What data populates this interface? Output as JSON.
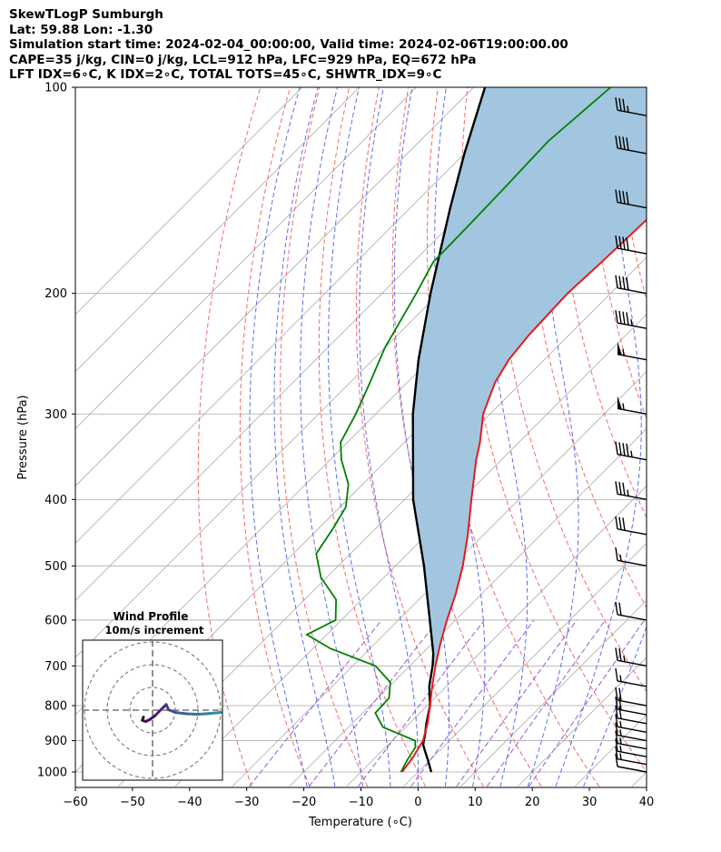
{
  "header": {
    "line1": "SkewTLogP Sumburgh",
    "line2": "Lat: 59.88   Lon: -1.30",
    "line3": "Simulation start time: 2024-02-04_00:00:00, Valid time: 2024-02-06T19:00:00.00",
    "line4": "CAPE=35 j/kg, CIN=0 j/kg, LCL=912 hPa, LFC=929 hPa, EQ=672 hPa",
    "line5": "LFT IDX=6∘C, K IDX=2∘C, TOTAL TOTS=45∘C, SHWTR_IDX=9∘C"
  },
  "chart_data": {
    "type": "skewt-logp",
    "xlabel": "Temperature (∘C)",
    "ylabel": "Pressure (hPa)",
    "xlim": [
      -60,
      40
    ],
    "ylim": [
      1050,
      100
    ],
    "x_ticks": [
      -60,
      -50,
      -40,
      -30,
      -20,
      -10,
      0,
      10,
      20,
      30,
      40
    ],
    "y_ticks": [
      1000,
      900,
      800,
      700,
      600,
      500,
      400,
      300,
      200,
      100
    ],
    "colors": {
      "temperature": "#e41a1c",
      "dewpoint": "#008000",
      "parcel": "#000000",
      "cape_fill": "#a3c6e0",
      "isotherm": "#aaaaaa",
      "dry_adiabat": "#f46a6a",
      "moist_adiabat": "#5a6ef0",
      "mixing_ratio": "#9b59d0"
    },
    "temperature_profile": [
      [
        1000,
        -2.8
      ],
      [
        950,
        -3.5
      ],
      [
        900,
        -4.6
      ],
      [
        850,
        -6.8
      ],
      [
        800,
        -9.5
      ],
      [
        750,
        -12.5
      ],
      [
        700,
        -15.5
      ],
      [
        650,
        -18.5
      ],
      [
        600,
        -21.5
      ],
      [
        550,
        -24.5
      ],
      [
        500,
        -28.2
      ],
      [
        450,
        -32.8
      ],
      [
        400,
        -38.3
      ],
      [
        350,
        -44.4
      ],
      [
        330,
        -46.8
      ],
      [
        300,
        -51.2
      ],
      [
        270,
        -54.6
      ],
      [
        250,
        -56.2
      ],
      [
        230,
        -57.0
      ],
      [
        200,
        -57.5
      ],
      [
        180,
        -57.0
      ],
      [
        150,
        -56.4
      ],
      [
        125,
        -55.6
      ],
      [
        100,
        -54.6
      ]
    ],
    "dewpoint_profile": [
      [
        1000,
        -3.0
      ],
      [
        960,
        -4.0
      ],
      [
        920,
        -4.8
      ],
      [
        900,
        -6.0
      ],
      [
        860,
        -14.0
      ],
      [
        820,
        -17.8
      ],
      [
        780,
        -18.0
      ],
      [
        740,
        -20.5
      ],
      [
        700,
        -26.0
      ],
      [
        660,
        -37.0
      ],
      [
        630,
        -43.5
      ],
      [
        600,
        -41.0
      ],
      [
        560,
        -44.5
      ],
      [
        520,
        -51.0
      ],
      [
        480,
        -56.0
      ],
      [
        440,
        -57.5
      ],
      [
        410,
        -59.0
      ],
      [
        380,
        -62.5
      ],
      [
        350,
        -68.0
      ],
      [
        330,
        -71.2
      ],
      [
        300,
        -73.5
      ],
      [
        270,
        -76.5
      ],
      [
        240,
        -80.0
      ],
      [
        200,
        -84.0
      ],
      [
        180,
        -86.5
      ],
      [
        160,
        -86.7
      ],
      [
        140,
        -87.0
      ],
      [
        120,
        -87.5
      ],
      [
        100,
        -86.0
      ]
    ],
    "parcel_profile": [
      [
        1000,
        2.3
      ],
      [
        960,
        -0.4
      ],
      [
        930,
        -2.6
      ],
      [
        912,
        -3.9
      ],
      [
        880,
        -5.4
      ],
      [
        850,
        -7.0
      ],
      [
        800,
        -9.5
      ],
      [
        750,
        -13.0
      ],
      [
        700,
        -16.0
      ],
      [
        672,
        -18.0
      ],
      [
        600,
        -24.5
      ],
      [
        500,
        -35.0
      ],
      [
        400,
        -48.5
      ],
      [
        300,
        -63.5
      ],
      [
        250,
        -72.0
      ],
      [
        200,
        -81.5
      ],
      [
        150,
        -93.0
      ],
      [
        125,
        -100.0
      ],
      [
        100,
        -108.0
      ]
    ],
    "wind_barbs": [
      {
        "p": 1000,
        "speed_kt": 10
      },
      {
        "p": 975,
        "speed_kt": 15
      },
      {
        "p": 950,
        "speed_kt": 15
      },
      {
        "p": 925,
        "speed_kt": 15
      },
      {
        "p": 900,
        "speed_kt": 15
      },
      {
        "p": 875,
        "speed_kt": 15
      },
      {
        "p": 850,
        "speed_kt": 20
      },
      {
        "p": 825,
        "speed_kt": 20
      },
      {
        "p": 800,
        "speed_kt": 20
      },
      {
        "p": 750,
        "speed_kt": 15
      },
      {
        "p": 700,
        "speed_kt": 25
      },
      {
        "p": 600,
        "speed_kt": 20
      },
      {
        "p": 500,
        "speed_kt": 15
      },
      {
        "p": 450,
        "speed_kt": 30
      },
      {
        "p": 400,
        "speed_kt": 35
      },
      {
        "p": 350,
        "speed_kt": 45
      },
      {
        "p": 300,
        "speed_kt": 55
      },
      {
        "p": 250,
        "speed_kt": 55
      },
      {
        "p": 225,
        "speed_kt": 45
      },
      {
        "p": 200,
        "speed_kt": 40
      },
      {
        "p": 175,
        "speed_kt": 40
      },
      {
        "p": 150,
        "speed_kt": 40
      },
      {
        "p": 125,
        "speed_kt": 40
      },
      {
        "p": 110,
        "speed_kt": 35
      }
    ],
    "hodograph": {
      "title": "Wind Profile",
      "subtitle": "10m/s increment",
      "rings_ms": [
        10,
        20,
        30
      ],
      "points": [
        [
          30,
          -1
        ],
        [
          25,
          -1.5
        ],
        [
          20,
          -1.8
        ],
        [
          15,
          -1.6
        ],
        [
          10,
          -1.0
        ],
        [
          7,
          0.2
        ],
        [
          6,
          2.5
        ],
        [
          5,
          1.5
        ],
        [
          3,
          -0.5
        ],
        [
          1,
          -2.5
        ],
        [
          -1,
          -4
        ],
        [
          -3,
          -5
        ],
        [
          -4.5,
          -4.5
        ],
        [
          -4,
          -3
        ]
      ]
    }
  }
}
